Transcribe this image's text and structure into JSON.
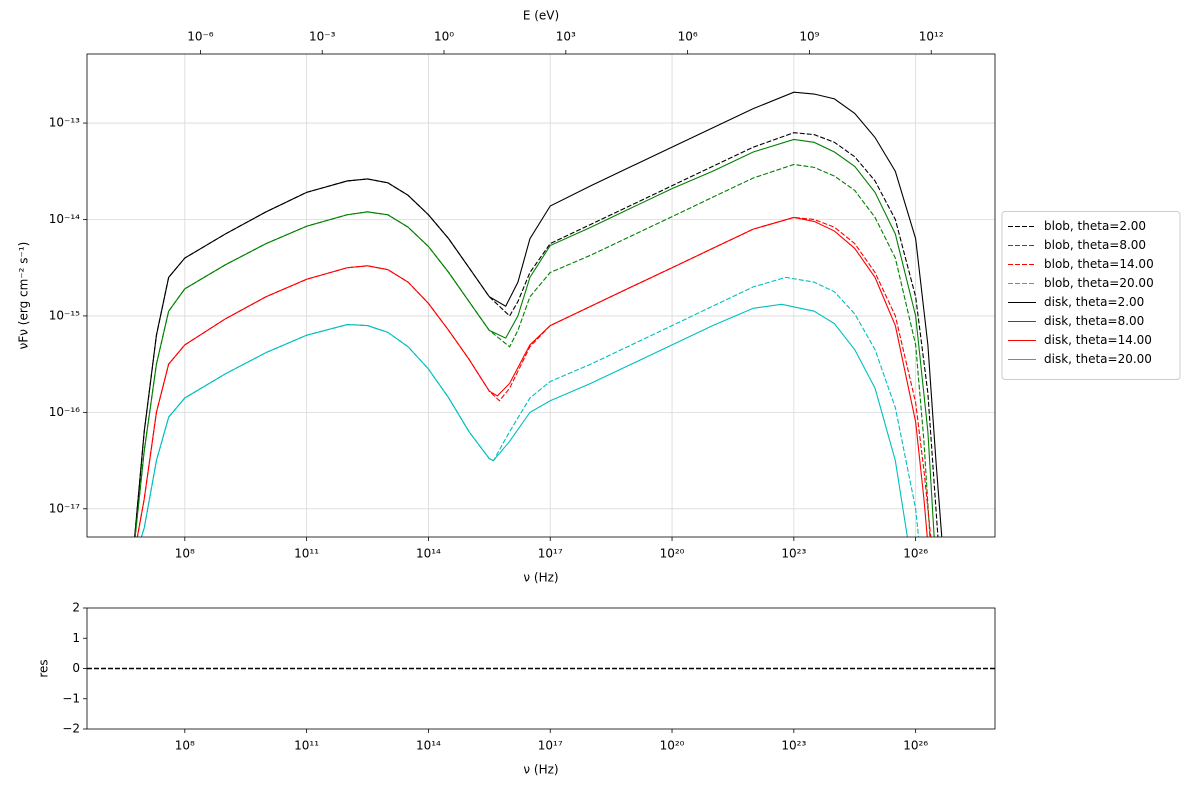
{
  "chart_data": [
    {
      "type": "line",
      "xscale": "log",
      "yscale": "log",
      "grid": true,
      "legend": "right",
      "xlabel": "ν  (Hz)",
      "ylabel": "νFν  (erg cm⁻²  s⁻¹)",
      "x2label": "E (eV)",
      "xlim": [
        390000.0,
        9e+27
      ],
      "ylim": [
        5.1e-18,
        5.2e-13
      ],
      "x2lim": [
        1.61e-09,
        37200000000000.0
      ],
      "xticks": [
        {
          "value": 100000000.0,
          "label": "10⁸"
        },
        {
          "value": 100000000000.0,
          "label": "10¹¹"
        },
        {
          "value": 100000000000000.0,
          "label": "10¹⁴"
        },
        {
          "value": 1e+17,
          "label": "10¹⁷"
        },
        {
          "value": 1e+20,
          "label": "10²⁰"
        },
        {
          "value": 1e+23,
          "label": "10²³"
        },
        {
          "value": 1e+26,
          "label": "10²⁶"
        }
      ],
      "yticks": [
        {
          "value": 1e-17,
          "label": "10⁻¹⁷"
        },
        {
          "value": 1e-16,
          "label": "10⁻¹⁶"
        },
        {
          "value": 1e-15,
          "label": "10⁻¹⁵"
        },
        {
          "value": 1e-14,
          "label": "10⁻¹⁴"
        },
        {
          "value": 1e-13,
          "label": "10⁻¹³"
        }
      ],
      "x2ticks": [
        {
          "value": 1e-06,
          "label": "10⁻⁶"
        },
        {
          "value": 0.001,
          "label": "10⁻³"
        },
        {
          "value": 1,
          "label": "10⁰"
        },
        {
          "value": 1000.0,
          "label": "10³"
        },
        {
          "value": 1000000.0,
          "label": "10⁶"
        },
        {
          "value": 1000000000.0,
          "label": "10⁹"
        },
        {
          "value": 1000000000000.0,
          "label": "10¹²"
        }
      ],
      "series": [
        {
          "name": "blob, theta=2.00",
          "color": "#000000",
          "style": "dashed",
          "x": [
            5000000.0,
            10000000.0,
            20000000.0,
            40000000.0,
            100000000.0,
            1000000000.0,
            10000000000.0,
            100000000000.0,
            1000000000000.0,
            3160000000000.0,
            10000000000000.0,
            31600000000000.0,
            100000000000000.0,
            316000000000000.0,
            1000000000000000.0,
            3160000000000000.0,
            1e+16,
            1.6e+16,
            3.16e+16,
            1e+17,
            1e+18,
            1e+19,
            1e+20,
            1e+21,
            1e+22,
            1e+23,
            3.16e+23,
            1e+24,
            3.16e+24,
            1e+25,
            3.16e+25,
            1e+26,
            2e+26,
            3.16e+26,
            4e+26
          ],
          "values": [
            2.51e-18,
            6.31e-17,
            6.31e-16,
            2.51e-15,
            3.98e-15,
            7.08e-15,
            1.2e-14,
            1.91e-14,
            2.51e-14,
            2.63e-14,
            2.4e-14,
            1.78e-14,
            1.12e-14,
            6.31e-15,
            3.16e-15,
            1.58e-15,
            1e-15,
            1.41e-15,
            2.82e-15,
            5.62e-15,
            8.91e-15,
            1.41e-14,
            2.24e-14,
            3.55e-14,
            5.62e-14,
            7.94e-14,
            7.59e-14,
            6.31e-14,
            4.47e-14,
            2.51e-14,
            1e-14,
            1.58e-15,
            1.58e-16,
            1e-17,
            2.51e-18
          ]
        },
        {
          "name": "blob, theta=8.00",
          "color": "#008000",
          "style": "dashed",
          "x": [
            5000000.0,
            10000000.0,
            20000000.0,
            40000000.0,
            100000000.0,
            1000000000.0,
            10000000000.0,
            100000000000.0,
            1000000000000.0,
            3160000000000.0,
            10000000000000.0,
            31600000000000.0,
            100000000000000.0,
            316000000000000.0,
            1000000000000000.0,
            3160000000000000.0,
            1e+16,
            1.6e+16,
            3.16e+16,
            1e+17,
            1e+18,
            1e+19,
            1e+20,
            1e+21,
            1e+22,
            1e+23,
            3.16e+23,
            1e+24,
            3.16e+24,
            1e+25,
            3.16e+25,
            1e+26,
            1.6e+26,
            2.5e+26
          ],
          "values": [
            2.51e-18,
            3.98e-17,
            3.16e-16,
            1.12e-15,
            1.91e-15,
            3.39e-15,
            5.62e-15,
            8.51e-15,
            1.12e-14,
            1.2e-14,
            1.12e-14,
            8.32e-15,
            5.25e-15,
            2.82e-15,
            1.41e-15,
            7.08e-16,
            4.79e-16,
            7.08e-16,
            1.58e-15,
            2.82e-15,
            4.27e-15,
            6.76e-15,
            1.07e-14,
            1.7e-14,
            2.69e-14,
            3.72e-14,
            3.47e-14,
            2.82e-14,
            2e-14,
            1.05e-14,
            3.98e-15,
            5.01e-16,
            5.01e-17,
            2.51e-18
          ]
        },
        {
          "name": "blob, theta=14.00",
          "color": "#ff0000",
          "style": "dashed",
          "x": [
            5000000.0,
            10000000.0,
            20000000.0,
            40000000.0,
            100000000.0,
            1000000000.0,
            10000000000.0,
            100000000000.0,
            1000000000000.0,
            3160000000000.0,
            10000000000000.0,
            31600000000000.0,
            100000000000000.0,
            316000000000000.0,
            1000000000000000.0,
            3160000000000000.0,
            5600000000000000.0,
            1e+16,
            3.16e+16,
            1e+17,
            1e+18,
            1e+19,
            1e+20,
            1e+21,
            1e+22,
            1e+23,
            3.16e+23,
            1e+24,
            3.16e+24,
            1e+25,
            3.16e+25,
            1e+26,
            1.6e+26,
            2.8e+26
          ],
          "values": [
            2.51e-18,
            1.26e-17,
            1e-16,
            3.16e-16,
            5.01e-16,
            9.33e-16,
            1.58e-15,
            2.4e-15,
            3.16e-15,
            3.31e-15,
            3.02e-15,
            2.24e-15,
            1.35e-15,
            7.08e-16,
            3.55e-16,
            1.66e-16,
            1.32e-16,
            1.78e-16,
            4.79e-16,
            7.94e-16,
            1.26e-15,
            2e-15,
            3.16e-15,
            5.01e-15,
            7.94e-15,
            1.05e-14,
            1e-14,
            8.32e-15,
            5.62e-15,
            2.82e-15,
            1e-15,
            1.26e-16,
            2.51e-17,
            2.51e-18
          ]
        },
        {
          "name": "blob, theta=20.00",
          "color": "#00bfbf",
          "style": "dashed",
          "x": [
            5000000.0,
            10000000.0,
            20000000.0,
            40000000.0,
            100000000.0,
            1000000000.0,
            10000000000.0,
            100000000000.0,
            1000000000000.0,
            3160000000000.0,
            10000000000000.0,
            31600000000000.0,
            100000000000000.0,
            316000000000000.0,
            1000000000000000.0,
            3160000000000000.0,
            4000000000000000.0,
            1e+16,
            3.16e+16,
            1e+17,
            1e+18,
            1e+19,
            1e+20,
            1e+21,
            1e+22,
            6.3e+22,
            3.16e+23,
            1e+24,
            3.16e+24,
            1e+25,
            3.16e+25,
            1e+26,
            1.4e+26
          ],
          "values": [
            2.51e-18,
            6.31e-18,
            3.16e-17,
            8.91e-17,
            1.41e-16,
            2.51e-16,
            4.17e-16,
            6.31e-16,
            8.13e-16,
            7.94e-16,
            6.76e-16,
            4.79e-16,
            2.82e-16,
            1.41e-16,
            6.31e-17,
            3.31e-17,
            3.16e-17,
            6.31e-17,
            1.41e-16,
            2.09e-16,
            3.16e-16,
            5.01e-16,
            7.94e-16,
            1.26e-15,
            2e-15,
            2.51e-15,
            2.24e-15,
            1.78e-15,
            1.05e-15,
            4.47e-16,
            1.12e-16,
            1e-17,
            2.51e-18
          ]
        },
        {
          "name": "disk, theta=2.00",
          "color": "#000000",
          "style": "solid",
          "x": [
            5000000.0,
            10000000.0,
            20000000.0,
            40000000.0,
            100000000.0,
            1000000000.0,
            10000000000.0,
            100000000000.0,
            1000000000000.0,
            3160000000000.0,
            10000000000000.0,
            31600000000000.0,
            100000000000000.0,
            316000000000000.0,
            1000000000000000.0,
            3160000000000000.0,
            8000000000000000.0,
            1.6e+16,
            3.16e+16,
            1e+17,
            1e+18,
            1e+19,
            1e+20,
            1e+21,
            1e+22,
            1e+23,
            3.16e+23,
            1e+24,
            3.16e+24,
            1e+25,
            3.16e+25,
            1e+26,
            2e+26,
            3.16e+26,
            5e+26
          ],
          "values": [
            2.51e-18,
            6.31e-17,
            6.31e-16,
            2.51e-15,
            3.98e-15,
            7.08e-15,
            1.2e-14,
            1.91e-14,
            2.51e-14,
            2.63e-14,
            2.4e-14,
            1.78e-14,
            1.12e-14,
            6.31e-15,
            3.16e-15,
            1.58e-15,
            1.26e-15,
            2.24e-15,
            6.31e-15,
            1.38e-14,
            2.24e-14,
            3.55e-14,
            5.62e-14,
            8.91e-14,
            1.41e-13,
            2.09e-13,
            2e-13,
            1.78e-13,
            1.26e-13,
            7.08e-14,
            3.16e-14,
            6.31e-15,
            5.01e-16,
            3.16e-17,
            2.51e-18
          ]
        },
        {
          "name": "disk, theta=8.00",
          "color": "#008000",
          "style": "solid",
          "x": [
            5000000.0,
            10000000.0,
            20000000.0,
            40000000.0,
            100000000.0,
            1000000000.0,
            10000000000.0,
            100000000000.0,
            1000000000000.0,
            3160000000000.0,
            10000000000000.0,
            31600000000000.0,
            100000000000000.0,
            316000000000000.0,
            1000000000000000.0,
            3160000000000000.0,
            8000000000000000.0,
            1.6e+16,
            3.16e+16,
            1e+17,
            1e+18,
            1e+19,
            1e+20,
            1e+21,
            1e+22,
            1e+23,
            3.16e+23,
            1e+24,
            3.16e+24,
            1e+25,
            3.16e+25,
            1e+26,
            2e+26,
            3.16e+26
          ],
          "values": [
            2.51e-18,
            3.98e-17,
            3.16e-16,
            1.12e-15,
            1.91e-15,
            3.39e-15,
            5.62e-15,
            8.51e-15,
            1.12e-14,
            1.2e-14,
            1.12e-14,
            8.32e-15,
            5.25e-15,
            2.82e-15,
            1.41e-15,
            7.08e-16,
            5.89e-16,
            1e-15,
            2.51e-15,
            5.37e-15,
            8.32e-15,
            1.32e-14,
            2.09e-14,
            3.16e-14,
            5.01e-14,
            6.76e-14,
            6.31e-14,
            5.01e-14,
            3.55e-14,
            1.91e-14,
            7.08e-15,
            1e-15,
            6.31e-17,
            2.51e-18
          ]
        },
        {
          "name": "disk, theta=14.00",
          "color": "#ff0000",
          "style": "solid",
          "x": [
            5000000.0,
            10000000.0,
            20000000.0,
            40000000.0,
            100000000.0,
            1000000000.0,
            10000000000.0,
            100000000000.0,
            1000000000000.0,
            3160000000000.0,
            10000000000000.0,
            31600000000000.0,
            100000000000000.0,
            316000000000000.0,
            1000000000000000.0,
            3160000000000000.0,
            5000000000000000.0,
            1e+16,
            3.16e+16,
            1e+17,
            1e+18,
            1e+19,
            1e+20,
            1e+21,
            1e+22,
            1e+23,
            3.16e+23,
            1e+24,
            3.16e+24,
            1e+25,
            3.16e+25,
            1e+26,
            1.6e+26,
            2.24e+26
          ],
          "values": [
            2.51e-18,
            1.26e-17,
            1e-16,
            3.16e-16,
            5.01e-16,
            9.33e-16,
            1.58e-15,
            2.4e-15,
            3.16e-15,
            3.31e-15,
            3.02e-15,
            2.24e-15,
            1.35e-15,
            7.08e-16,
            3.55e-16,
            1.66e-16,
            1.48e-16,
            2e-16,
            5.01e-16,
            7.94e-16,
            1.26e-15,
            2e-15,
            3.16e-15,
            5.01e-15,
            7.94e-15,
            1.05e-14,
            9.55e-15,
            7.59e-15,
            5.01e-15,
            2.51e-15,
            7.94e-16,
            7.94e-17,
            1.26e-17,
            2.51e-18
          ]
        },
        {
          "name": "disk, theta=20.00",
          "color": "#00bfbf",
          "style": "solid",
          "x": [
            5000000.0,
            10000000.0,
            20000000.0,
            40000000.0,
            100000000.0,
            1000000000.0,
            10000000000.0,
            100000000000.0,
            1000000000000.0,
            3160000000000.0,
            10000000000000.0,
            31600000000000.0,
            100000000000000.0,
            316000000000000.0,
            1000000000000000.0,
            3160000000000000.0,
            4000000000000000.0,
            1e+16,
            3.16e+16,
            1e+17,
            1e+18,
            1e+19,
            1e+20,
            1e+21,
            1e+22,
            5e+22,
            3.16e+23,
            1e+24,
            3.16e+24,
            1e+25,
            3.16e+25,
            6.3e+25,
            8e+25
          ],
          "values": [
            2.51e-18,
            6.31e-18,
            3.16e-17,
            8.91e-17,
            1.41e-16,
            2.51e-16,
            4.17e-16,
            6.31e-16,
            8.13e-16,
            7.94e-16,
            6.76e-16,
            4.79e-16,
            2.82e-16,
            1.41e-16,
            6.31e-17,
            3.31e-17,
            3.16e-17,
            5.01e-17,
            1e-16,
            1.32e-16,
            2e-16,
            3.16e-16,
            5.01e-16,
            7.94e-16,
            1.2e-15,
            1.32e-15,
            1.12e-15,
            8.32e-16,
            4.47e-16,
            1.78e-16,
            3.16e-17,
            5.01e-18,
            2.51e-18
          ]
        }
      ]
    },
    {
      "type": "line",
      "xscale": "log",
      "grid": false,
      "xlabel": "ν  (Hz)",
      "ylabel": "res",
      "xlim": [
        390000.0,
        9e+27
      ],
      "ylim": [
        -2,
        2
      ],
      "xticks": [
        {
          "value": 100000000.0,
          "label": "10⁸"
        },
        {
          "value": 100000000000.0,
          "label": "10¹¹"
        },
        {
          "value": 100000000000000.0,
          "label": "10¹⁴"
        },
        {
          "value": 1e+17,
          "label": "10¹⁷"
        },
        {
          "value": 1e+20,
          "label": "10²⁰"
        },
        {
          "value": 1e+23,
          "label": "10²³"
        },
        {
          "value": 1e+26,
          "label": "10²⁶"
        }
      ],
      "yticks": [
        {
          "value": -2,
          "label": "−2"
        },
        {
          "value": -1,
          "label": "−1"
        },
        0,
        1,
        2
      ],
      "hline": {
        "y": 0,
        "color": "#000000",
        "style": "dashed"
      },
      "series": []
    }
  ]
}
